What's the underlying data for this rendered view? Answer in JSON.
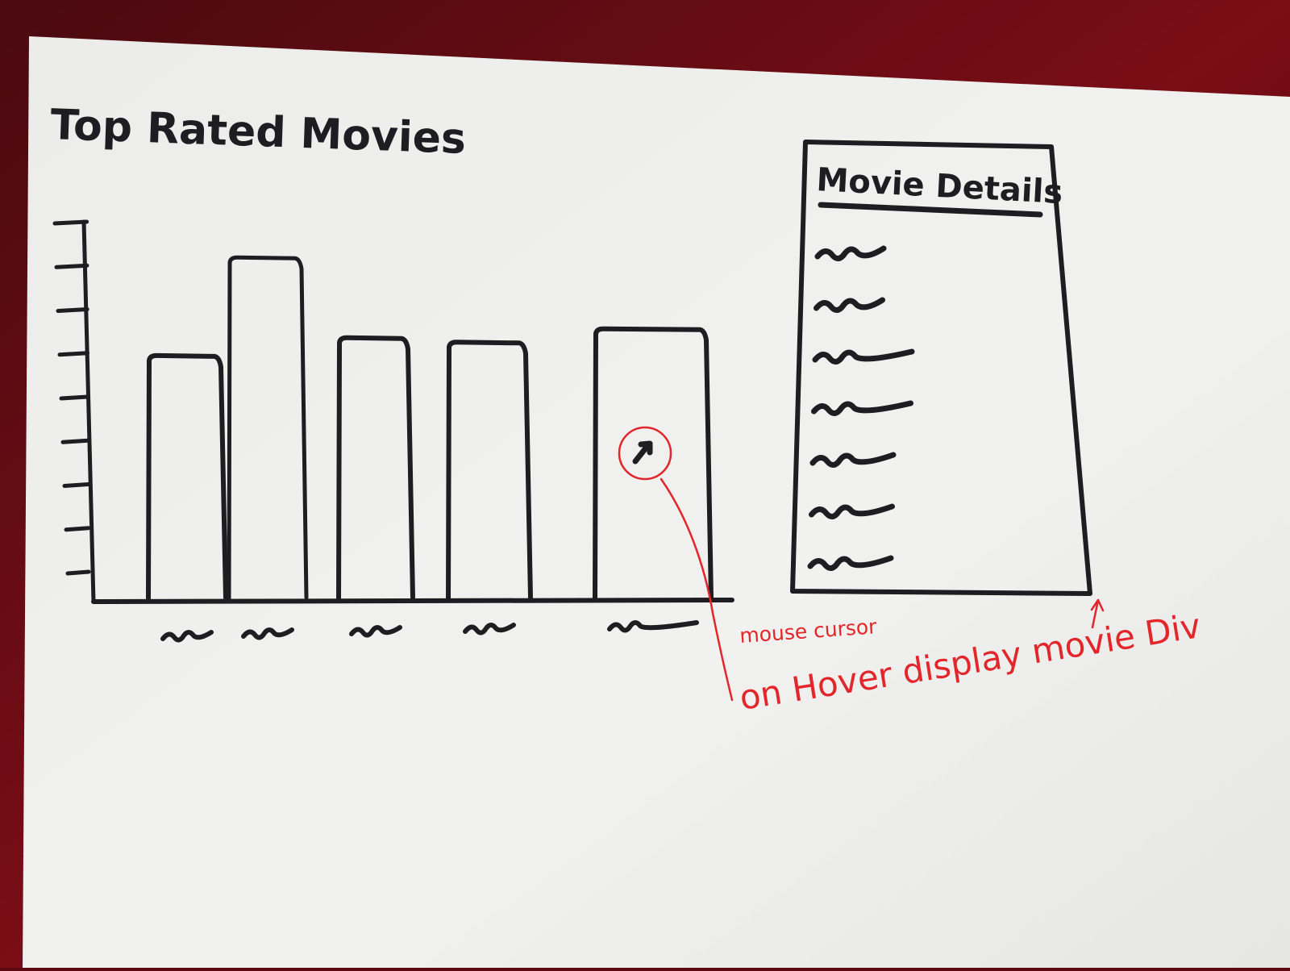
{
  "sketch": {
    "title": "Top Rated Movies",
    "details_panel_title": "Movie Details",
    "annotations": {
      "mouse_cursor": "mouse cursor",
      "hover_note": "on Hover display movie Div"
    }
  },
  "chart_data": {
    "type": "bar",
    "title": "Top Rated Movies",
    "categories": [
      "",
      "",
      "",
      "",
      ""
    ],
    "values": [
      5.5,
      7.7,
      5.9,
      5.8,
      6.1
    ],
    "ylim": [
      0,
      8.5
    ],
    "y_ticks": 9,
    "xlabel": "",
    "ylabel": "",
    "grid": false,
    "highlighted_index": 4
  },
  "details_panel": {
    "line_count": 8
  },
  "colors": {
    "ink": "#1e1e22",
    "annotation": "#e3262b",
    "paper": "#ededeb",
    "background": "#5a0a10"
  }
}
